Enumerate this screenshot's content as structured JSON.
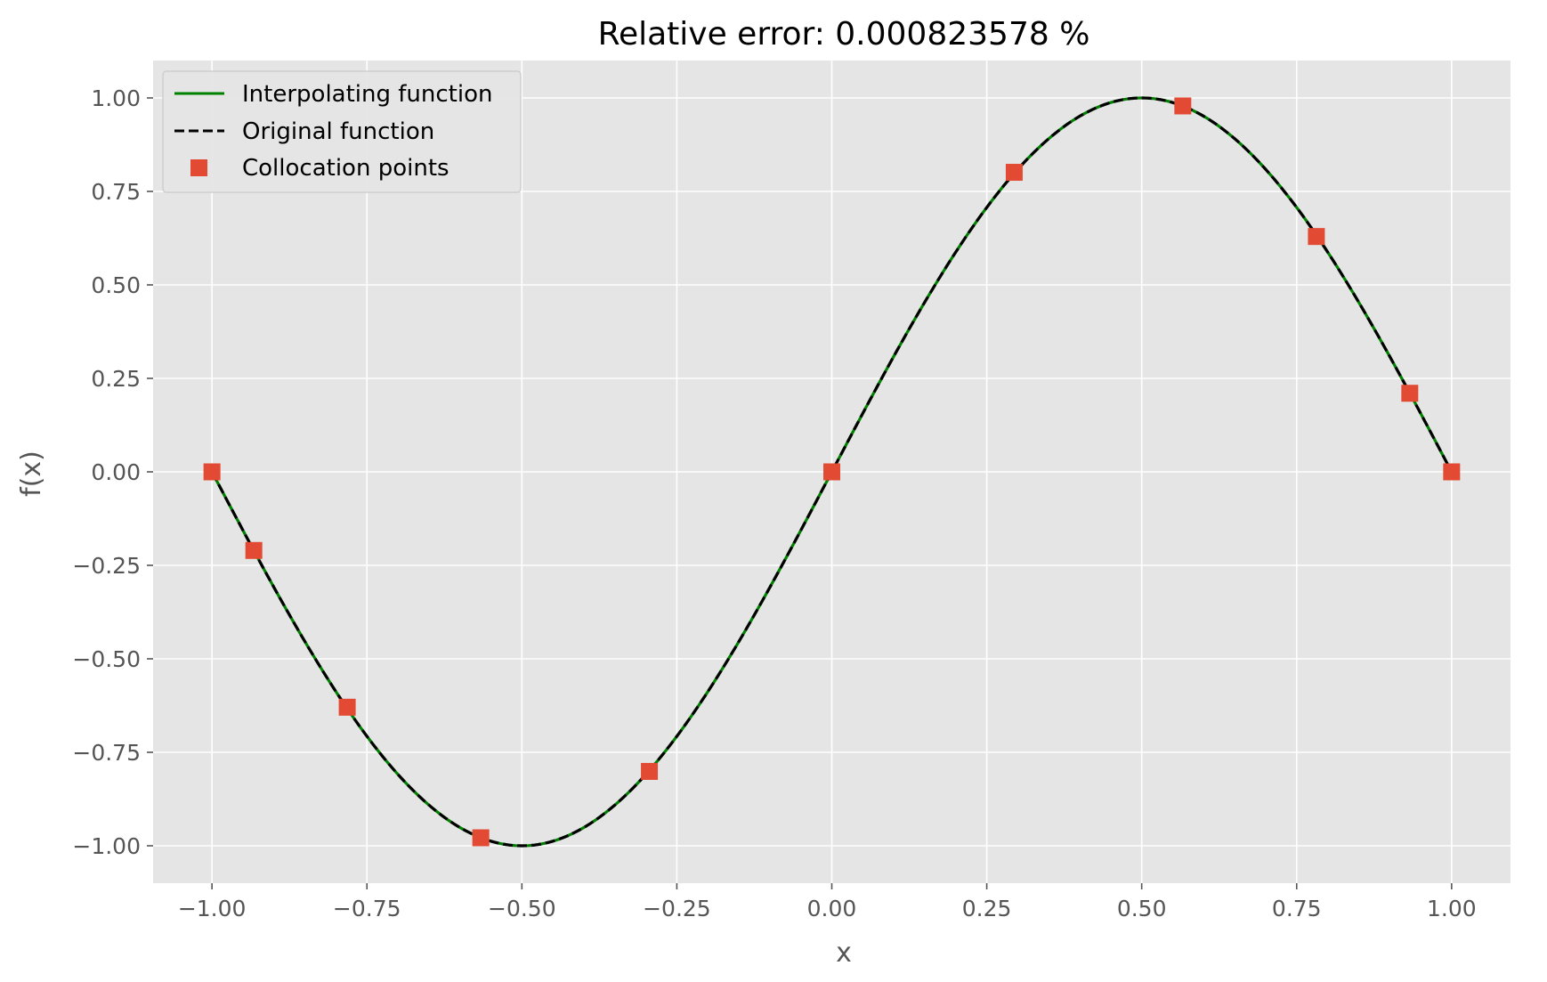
{
  "chart_data": {
    "type": "line",
    "title": "Relative error: 0.000823578 %",
    "xlabel": "x",
    "ylabel": "f(x)",
    "xlim": [
      -1.095,
      1.095
    ],
    "ylim": [
      -1.1,
      1.1
    ],
    "grid": true,
    "legend_position": "top-left",
    "x_ticks": [
      -1.0,
      -0.75,
      -0.5,
      -0.25,
      0.0,
      0.25,
      0.5,
      0.75,
      1.0
    ],
    "x_tick_labels": [
      "−1.00",
      "−0.75",
      "−0.50",
      "−0.25",
      "0.00",
      "0.25",
      "0.50",
      "0.75",
      "1.00"
    ],
    "y_ticks": [
      1.0,
      0.75,
      0.5,
      0.25,
      0.0,
      -0.25,
      -0.5,
      -0.75,
      -1.0
    ],
    "y_tick_labels": [
      "1.00",
      "0.75",
      "0.50",
      "0.25",
      "0.00",
      "−0.25",
      "−0.50",
      "−0.75",
      "−1.00"
    ],
    "series": [
      {
        "name": "Interpolating function",
        "style": "solid-line",
        "color": "#008000",
        "function": "sin(pi*x)",
        "x_range": [
          -1.0,
          1.0
        ]
      },
      {
        "name": "Original function",
        "style": "dashed-line",
        "color": "#000000",
        "function": "sin(pi*x)",
        "x_range": [
          -1.0,
          1.0
        ]
      },
      {
        "name": "Collocation points",
        "style": "square-markers",
        "color": "#E24A33",
        "points": [
          {
            "x": -1.0,
            "y": 0.0
          },
          {
            "x": -0.9325,
            "y": -0.2102
          },
          {
            "x": -0.7818,
            "y": -0.6294
          },
          {
            "x": -0.5663,
            "y": -0.9786
          },
          {
            "x": -0.2943,
            "y": -0.8011
          },
          {
            "x": 0.0,
            "y": 0.0
          },
          {
            "x": 0.2943,
            "y": 0.8011
          },
          {
            "x": 0.5663,
            "y": 0.9786
          },
          {
            "x": 0.7818,
            "y": 0.6294
          },
          {
            "x": 0.9325,
            "y": 0.2102
          },
          {
            "x": 1.0,
            "y": 0.0
          }
        ]
      }
    ],
    "colors": {
      "plot_background": "#E5E5E5",
      "grid": "#FFFFFF",
      "tick_text": "#555555",
      "title_text": "#000000"
    }
  }
}
